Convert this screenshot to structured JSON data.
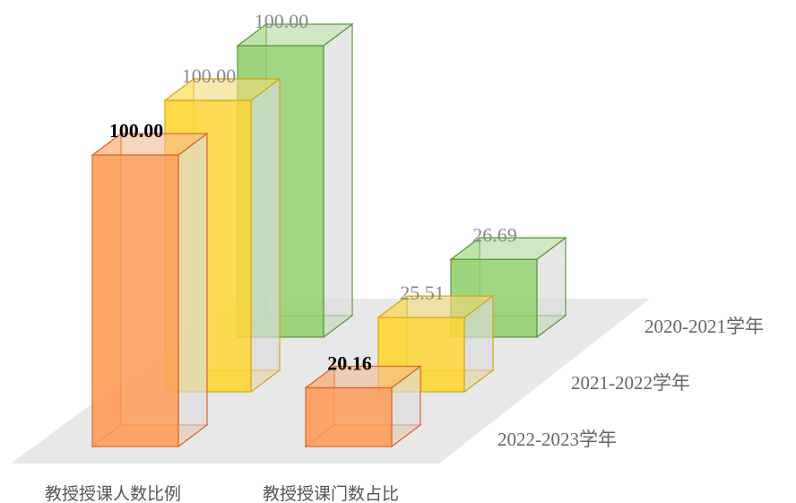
{
  "chart_data": {
    "type": "bar3d",
    "categories": [
      "教授授课人数比例",
      "教授授课门数占比"
    ],
    "series": [
      {
        "name": "2022-2023学年",
        "color": "#ff9a55",
        "values": [
          100,
          20.16
        ],
        "value_labels": [
          "100.00",
          "20.16"
        ]
      },
      {
        "name": "2021-2022学年",
        "color": "#ffd52e",
        "values": [
          100,
          25.51
        ],
        "value_labels": [
          "100.00",
          "25.51"
        ]
      },
      {
        "name": "2020-2021学年",
        "color": "#8fcf6a",
        "values": [
          100,
          26.69
        ],
        "value_labels": [
          "100.00",
          "26.69"
        ]
      }
    ]
  }
}
